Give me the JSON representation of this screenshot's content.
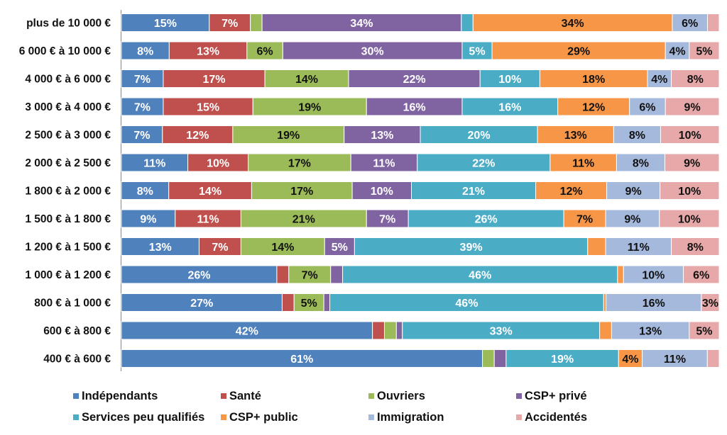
{
  "chart_data": {
    "type": "bar",
    "orientation": "horizontal",
    "stacked": "percent",
    "title": "",
    "xlabel": "",
    "ylabel": "",
    "categories": [
      "plus de 10 000 €",
      "6 000 € à 10 000 €",
      "4 000 € à 6 000 €",
      "3 000 € à 4 000 €",
      "2 500 € à 3 000 €",
      "2 000 € à 2 500 €",
      "1 800 € à 2 000 €",
      "1 500 € à 1 800 €",
      "1 200 € à 1 500 €",
      "1 000 € à 1 200 €",
      "800 € à 1 000 €",
      "600 € à 800 €",
      "400 € à 600 €"
    ],
    "series": [
      {
        "name": "Indépendants",
        "color": "#4f81bd",
        "values": [
          15,
          8,
          7,
          7,
          7,
          11,
          8,
          9,
          13,
          26,
          27,
          42,
          61
        ]
      },
      {
        "name": "Santé",
        "color": "#c0504d",
        "values": [
          7,
          13,
          17,
          15,
          12,
          10,
          14,
          11,
          7,
          2,
          2,
          2,
          0
        ]
      },
      {
        "name": "Ouvriers",
        "color": "#9bbb59",
        "values": [
          2,
          6,
          14,
          19,
          19,
          17,
          17,
          21,
          14,
          7,
          5,
          2,
          2
        ]
      },
      {
        "name": "CSP+ privé",
        "color": "#8064a2",
        "values": [
          34,
          30,
          22,
          16,
          13,
          11,
          10,
          7,
          5,
          2,
          1,
          1,
          2
        ]
      },
      {
        "name": "Services peu qualifiés",
        "color": "#4bacc6",
        "values": [
          2,
          5,
          10,
          16,
          20,
          22,
          21,
          26,
          39,
          46,
          46,
          33,
          19
        ]
      },
      {
        "name": "CSP+ public",
        "color": "#f79646",
        "values": [
          34,
          29,
          18,
          12,
          13,
          11,
          12,
          7,
          3,
          1,
          0.4,
          2,
          4
        ]
      },
      {
        "name": "Immigration",
        "color": "#a5b9dc",
        "values": [
          6,
          4,
          4,
          6,
          8,
          8,
          9,
          9,
          11,
          10,
          16,
          13,
          11
        ]
      },
      {
        "name": "Accidentés",
        "color": "#e6a8a9",
        "values": [
          2,
          5,
          8,
          9,
          10,
          9,
          10,
          10,
          8,
          6,
          3,
          5,
          2
        ]
      }
    ],
    "labels": [
      [
        "15%",
        "7%",
        "",
        "34%",
        "",
        "34%",
        "6%",
        ""
      ],
      [
        "8%",
        "13%",
        "6%",
        "30%",
        "5%",
        "29%",
        "4%",
        "5%"
      ],
      [
        "7%",
        "17%",
        "14%",
        "22%",
        "10%",
        "18%",
        "4%",
        "8%"
      ],
      [
        "7%",
        "15%",
        "19%",
        "16%",
        "16%",
        "12%",
        "6%",
        "9%"
      ],
      [
        "7%",
        "12%",
        "19%",
        "13%",
        "20%",
        "13%",
        "8%",
        "10%"
      ],
      [
        "11%",
        "10%",
        "17%",
        "11%",
        "22%",
        "11%",
        "8%",
        "9%"
      ],
      [
        "8%",
        "14%",
        "17%",
        "10%",
        "21%",
        "12%",
        "9%",
        "10%"
      ],
      [
        "9%",
        "11%",
        "21%",
        "7%",
        "26%",
        "7%",
        "9%",
        "10%"
      ],
      [
        "13%",
        "7%",
        "14%",
        "5%",
        "39%",
        "",
        "11%",
        "8%"
      ],
      [
        "26%",
        "",
        "7%",
        "",
        "46%",
        "",
        "10%",
        "6%"
      ],
      [
        "27%",
        "",
        "5%",
        "",
        "46%",
        "",
        "16%",
        "3%"
      ],
      [
        "42%",
        "",
        "",
        "",
        "33%",
        "",
        "13%",
        "5%"
      ],
      [
        "61%",
        "",
        "",
        "",
        "19%",
        "4%",
        "11%",
        ""
      ]
    ],
    "xlim": [
      0,
      100
    ],
    "grid": false,
    "legend": {
      "position": "bottom",
      "columns": 4
    }
  }
}
